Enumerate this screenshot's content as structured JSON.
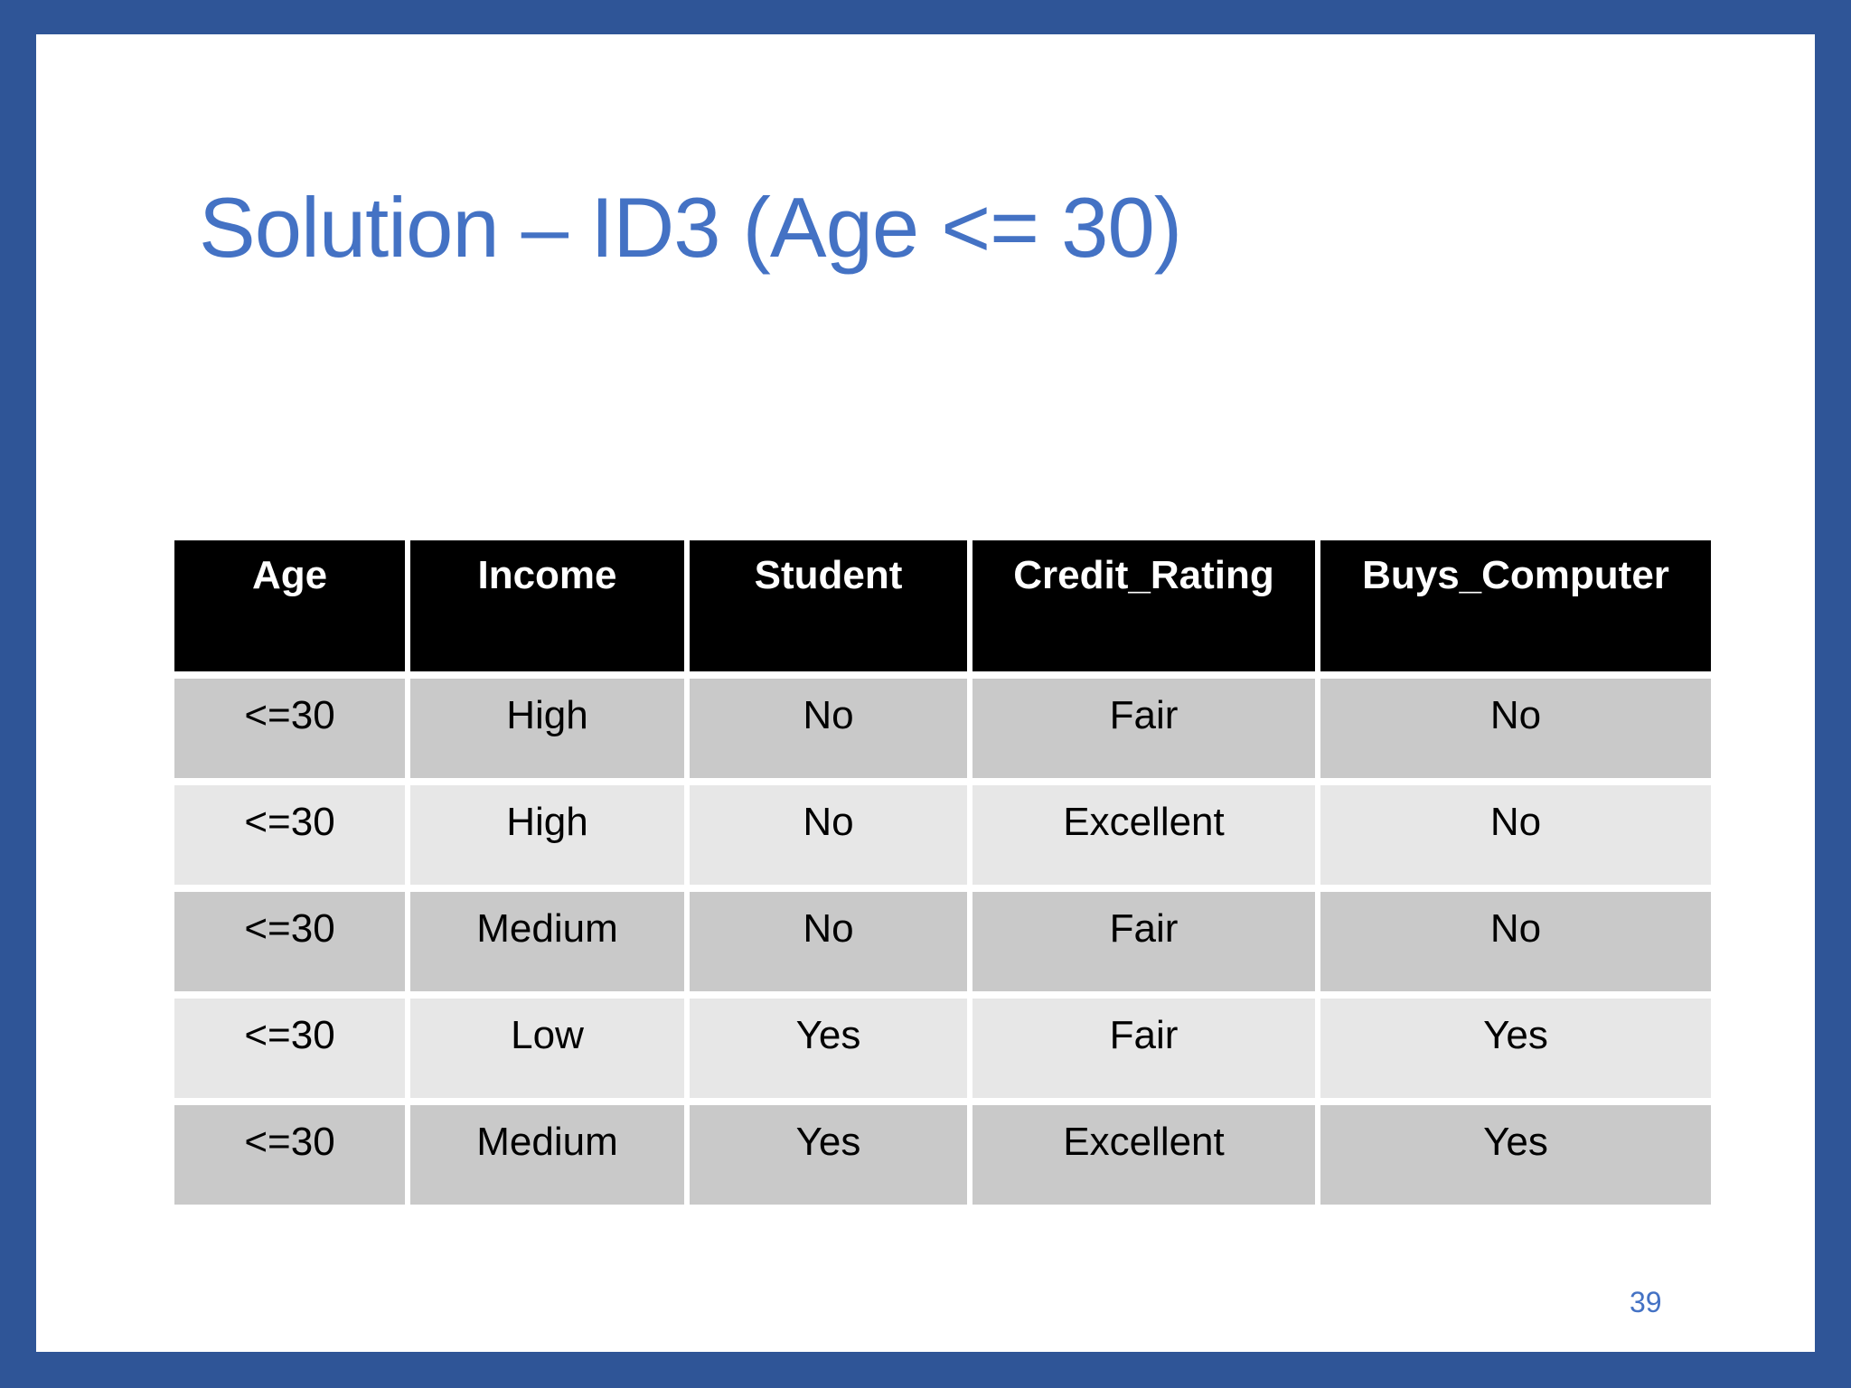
{
  "slide": {
    "title": "Solution – ID3 (Age <= 30)",
    "page_number": "39"
  },
  "table": {
    "columns": [
      "Age",
      "Income",
      "Student",
      "Credit_Rating",
      "Buys_Computer"
    ],
    "rows": [
      [
        "<=30",
        "High",
        "No",
        "Fair",
        "No"
      ],
      [
        "<=30",
        "High",
        "No",
        "Excellent",
        "No"
      ],
      [
        "<=30",
        "Medium",
        "No",
        "Fair",
        "No"
      ],
      [
        "<=30",
        "Low",
        "Yes",
        "Fair",
        "Yes"
      ],
      [
        "<=30",
        "Medium",
        "Yes",
        "Excellent",
        "Yes"
      ]
    ]
  },
  "colors": {
    "frame": "#2F5597",
    "title": "#4472C4",
    "header_bg": "#000000",
    "header_text": "#FFFFFF",
    "row_dark": "#C9C9C9",
    "row_light": "#E7E7E7",
    "page_number": "#4472C4"
  }
}
